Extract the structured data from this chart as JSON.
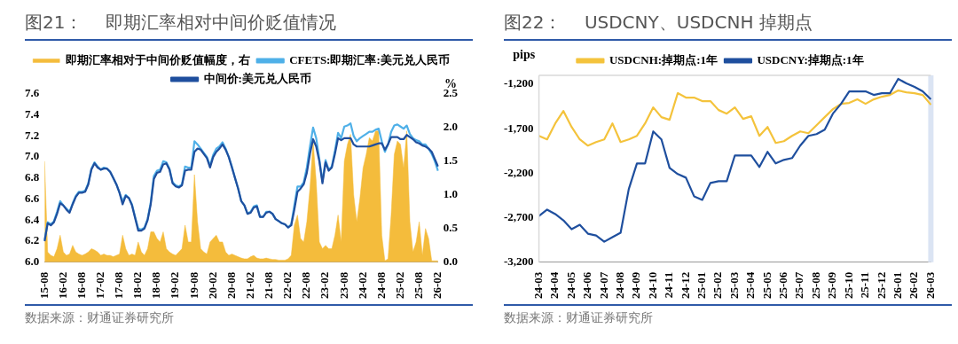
{
  "chart_data": [
    {
      "type": "line",
      "title": "图21：    即期汇率相对中间价贬值情况",
      "annotations": [
        "数据来源：财通证券研究所"
      ],
      "y2label": "%",
      "legend": "top",
      "categories": [
        "15-08",
        null,
        null,
        null,
        null,
        null,
        "16-02",
        null,
        null,
        null,
        null,
        null,
        "16-08",
        null,
        null,
        null,
        null,
        null,
        "17-02",
        null,
        null,
        null,
        null,
        null,
        "17-08",
        null,
        null,
        null,
        null,
        null,
        "18-02",
        null,
        null,
        null,
        null,
        null,
        "18-08",
        null,
        null,
        null,
        null,
        null,
        "19-02",
        null,
        null,
        null,
        null,
        null,
        "19-08",
        null,
        null,
        null,
        null,
        null,
        "20-02",
        null,
        null,
        null,
        null,
        null,
        "20-08",
        null,
        null,
        null,
        null,
        null,
        "21-02",
        null,
        null,
        null,
        null,
        null,
        "21-08",
        null,
        null,
        null,
        null,
        null,
        "22-02",
        null,
        null,
        null,
        null,
        null,
        "22-08",
        null,
        null,
        null,
        null,
        null,
        "23-02",
        null,
        null,
        null,
        null,
        null,
        "23-08",
        null,
        null,
        null,
        null,
        null,
        "24-02",
        null,
        null,
        null,
        null,
        null,
        "24-08",
        null,
        null,
        null,
        null,
        null,
        "25-02",
        null,
        null,
        null,
        null,
        null,
        "25-08",
        null,
        null,
        null,
        null,
        null,
        "26-02"
      ],
      "ylim": [
        6.0,
        7.6
      ],
      "yticks": [
        {
          "value": 6,
          "label": "6.0"
        },
        6.2,
        6.4,
        6.6,
        6.8,
        {
          "value": 7,
          "label": "7.0"
        },
        7.2,
        7.4,
        7.6
      ],
      "y2lim": [
        0,
        2.5
      ],
      "y2ticks": [
        {
          "value": 0,
          "label": "0.0"
        },
        0.5,
        {
          "value": 1,
          "label": "1.0"
        },
        1.5,
        {
          "value": 2,
          "label": "2.0"
        },
        2.5
      ],
      "series": [
        {
          "name": "即期汇率相对于中间价贬值幅度，右",
          "type": "area",
          "axis": "y2",
          "color": "#f4bc3c",
          "values": [
            1.5,
            0.15,
            0.1,
            0.08,
            0.2,
            0.4,
            0.15,
            0.1,
            0.12,
            0.25,
            0.15,
            0.12,
            0.1,
            0.12,
            0.15,
            0.2,
            0.18,
            0.15,
            0.1,
            0.12,
            0.1,
            0.1,
            0.08,
            0.1,
            0.12,
            0.4,
            0.2,
            0.1,
            0.12,
            0.1,
            0.3,
            0.15,
            0.1,
            0.2,
            0.45,
            0.45,
            0.35,
            0.3,
            0.45,
            0.2,
            0.15,
            0.12,
            0.1,
            0.15,
            0.2,
            0.55,
            0.3,
            0.3,
            1.3,
            0.6,
            0.2,
            0.15,
            0.12,
            0.3,
            0.35,
            0.4,
            0.3,
            0.3,
            0.15,
            0.1,
            0.12,
            0.1,
            0.08,
            0.06,
            0.05,
            0.05,
            0.08,
            0.1,
            0.06,
            0.05,
            0.05,
            0.06,
            0.05,
            0.04,
            0.04,
            0.03,
            0.03,
            0.03,
            0.05,
            0.1,
            0.55,
            0.7,
            0.35,
            0.3,
            0.6,
            1.1,
            1.8,
            1.2,
            0.3,
            0.2,
            0.25,
            0.2,
            0.2,
            0.4,
            0.7,
            0.3,
            1.5,
            1.75,
            1.9,
            1.0,
            0.6,
            0.95,
            1.4,
            1.6,
            1.85,
            1.8,
            1.95,
            1.95,
            0.4,
            0.02,
            0.05,
            0.7,
            1.6,
            1.8,
            1.75,
            1.4,
            1.95,
            0.6,
            0.15,
            0.3,
            0.6,
            0.1,
            0.5,
            0.35,
            0.02,
            0.02,
            0.02
          ]
        },
        {
          "name": "CFETS:即期汇率:美元兑人民币",
          "type": "line",
          "color": "#4fb0e8",
          "values": [
            6.21,
            6.38,
            6.36,
            6.39,
            6.48,
            6.58,
            6.54,
            6.51,
            6.48,
            6.56,
            6.63,
            6.67,
            6.67,
            6.68,
            6.75,
            6.89,
            6.95,
            6.91,
            6.88,
            6.9,
            6.89,
            6.86,
            6.8,
            6.74,
            6.66,
            6.58,
            6.64,
            6.61,
            6.55,
            6.43,
            6.32,
            6.31,
            6.33,
            6.41,
            6.57,
            6.82,
            6.87,
            6.88,
            6.96,
            6.95,
            6.89,
            6.76,
            6.73,
            6.72,
            6.74,
            6.91,
            6.9,
            6.9,
            7.15,
            7.12,
            7.08,
            7.04,
            7.0,
            6.92,
            7.02,
            7.08,
            7.1,
            7.14,
            7.08,
            7.0,
            6.91,
            6.8,
            6.7,
            6.58,
            6.54,
            6.46,
            6.48,
            6.53,
            6.54,
            6.43,
            6.43,
            6.48,
            6.48,
            6.46,
            6.41,
            6.39,
            6.37,
            6.36,
            6.33,
            6.36,
            6.54,
            6.72,
            6.72,
            6.76,
            6.9,
            7.1,
            7.28,
            7.18,
            6.98,
            6.77,
            6.97,
            6.88,
            6.91,
            7.06,
            7.23,
            7.18,
            7.29,
            7.3,
            7.32,
            7.2,
            7.15,
            7.18,
            7.2,
            7.22,
            7.24,
            7.24,
            7.26,
            7.27,
            7.15,
            7.05,
            7.12,
            7.24,
            7.3,
            7.31,
            7.29,
            7.27,
            7.3,
            7.22,
            7.18,
            7.16,
            7.15,
            7.12,
            7.12,
            7.08,
            7.03,
            6.96,
            6.87
          ]
        },
        {
          "name": "中间价:美元兑人民币",
          "type": "line",
          "color": "#1f4f9e",
          "values": [
            6.2,
            6.37,
            6.35,
            6.38,
            6.46,
            6.56,
            6.54,
            6.5,
            6.47,
            6.55,
            6.62,
            6.66,
            6.66,
            6.67,
            6.74,
            6.88,
            6.94,
            6.9,
            6.88,
            6.89,
            6.89,
            6.86,
            6.8,
            6.74,
            6.66,
            6.55,
            6.63,
            6.61,
            6.54,
            6.42,
            6.3,
            6.3,
            6.32,
            6.4,
            6.55,
            6.79,
            6.85,
            6.86,
            6.93,
            6.94,
            6.88,
            6.75,
            6.72,
            6.71,
            6.73,
            6.87,
            6.88,
            6.88,
            7.05,
            7.08,
            7.07,
            7.03,
            6.99,
            6.9,
            7.0,
            7.05,
            7.08,
            7.12,
            7.07,
            7.0,
            6.9,
            6.8,
            6.7,
            6.58,
            6.54,
            6.46,
            6.47,
            6.52,
            6.53,
            6.43,
            6.43,
            6.47,
            6.48,
            6.46,
            6.41,
            6.39,
            6.37,
            6.36,
            6.33,
            6.35,
            6.5,
            6.67,
            6.7,
            6.74,
            6.85,
            7.03,
            7.17,
            7.1,
            6.96,
            6.75,
            6.95,
            6.87,
            6.9,
            7.03,
            7.18,
            7.16,
            7.18,
            7.18,
            7.18,
            7.12,
            7.1,
            7.1,
            7.1,
            7.1,
            7.1,
            7.11,
            7.12,
            7.13,
            7.13,
            7.07,
            7.12,
            7.19,
            7.19,
            7.19,
            7.17,
            7.17,
            7.21,
            7.19,
            7.17,
            7.14,
            7.13,
            7.11,
            7.1,
            7.08,
            7.05,
            6.98,
            6.91
          ]
        }
      ]
    },
    {
      "type": "line",
      "title": "图22：    USDCNY、USDCNH 掉期点",
      "annotations": [
        "数据来源：财通证券研究所"
      ],
      "ylabel": "pips",
      "legend": "top",
      "categories": [
        "24-03",
        null,
        "24-04",
        null,
        "24-05",
        null,
        "24-06",
        null,
        "24-07",
        null,
        "24-08",
        null,
        "24-09",
        null,
        "24-10",
        null,
        "24-11",
        null,
        "24-12",
        null,
        "25-01",
        null,
        "25-02",
        null,
        "25-03",
        null,
        "25-04",
        null,
        "25-05",
        null,
        "25-06",
        null,
        "25-07",
        null,
        "25-08",
        null,
        "25-09",
        null,
        "25-10",
        null,
        "25-11",
        null,
        "25-12",
        null,
        "26-01",
        null,
        "26-02",
        null,
        "26-03"
      ],
      "ylim": [
        -3200,
        -1100
      ],
      "yticks": [
        {
          "value": -3200,
          "label": "-3,200"
        },
        {
          "value": -2700,
          "label": "-2,700"
        },
        {
          "value": -2200,
          "label": "-2,200"
        },
        {
          "value": -1700,
          "label": "-1,700"
        },
        {
          "value": -1200,
          "label": "-1,200"
        }
      ],
      "bands": [
        {
          "axis": "x",
          "from": "26-03",
          "to": "26-03",
          "color": "#dbe4f3"
        }
      ],
      "series": [
        {
          "name": "USDCNH:掉期点:1年",
          "type": "line",
          "color": "#f4c33c",
          "values": [
            -1780,
            -1820,
            -1640,
            -1500,
            -1680,
            -1820,
            -1890,
            -1850,
            -1820,
            -1640,
            -1850,
            -1820,
            -1780,
            -1640,
            -1460,
            -1570,
            -1600,
            -1300,
            -1350,
            -1350,
            -1390,
            -1390,
            -1490,
            -1530,
            -1460,
            -1590,
            -1560,
            -1780,
            -1680,
            -1860,
            -1840,
            -1780,
            -1730,
            -1750,
            -1660,
            -1570,
            -1480,
            -1420,
            -1410,
            -1370,
            -1420,
            -1370,
            -1340,
            -1320,
            -1270,
            -1290,
            -1300,
            -1320,
            -1430
          ]
        },
        {
          "name": "USDCNY:掉期点:1年",
          "type": "line",
          "color": "#1f4f9e",
          "values": [
            -2680,
            -2610,
            -2660,
            -2730,
            -2830,
            -2780,
            -2880,
            -2900,
            -2970,
            -2920,
            -2870,
            -2380,
            -2090,
            -2090,
            -1730,
            -1820,
            -2140,
            -2210,
            -2250,
            -2460,
            -2500,
            -2310,
            -2290,
            -2290,
            -2000,
            -2000,
            -2000,
            -2130,
            -1960,
            -2090,
            -2050,
            -2030,
            -1890,
            -1780,
            -1760,
            -1710,
            -1530,
            -1420,
            -1280,
            -1280,
            -1280,
            -1320,
            -1300,
            -1300,
            -1140,
            -1190,
            -1230,
            -1280,
            -1370
          ]
        }
      ]
    }
  ]
}
